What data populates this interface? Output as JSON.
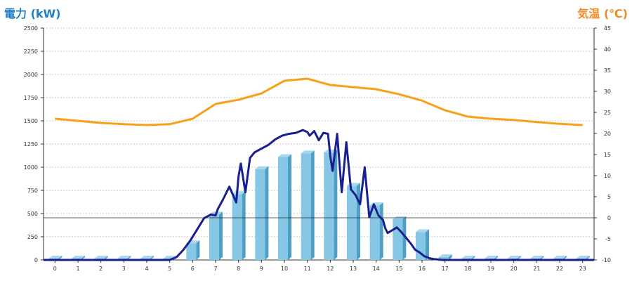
{
  "chart_data": {
    "type": "bar",
    "title_left": "電力 (kW)",
    "title_right": "気温 (℃)",
    "categories": [
      "0",
      "1",
      "2",
      "3",
      "4",
      "5",
      "6",
      "7",
      "8",
      "9",
      "10",
      "11",
      "12",
      "13",
      "14",
      "15",
      "16",
      "17",
      "18",
      "19",
      "20",
      "21",
      "22",
      "23"
    ],
    "y_left": {
      "min": 0,
      "max": 2500,
      "ticks": [
        0,
        250,
        500,
        750,
        1000,
        1250,
        1500,
        1750,
        2000,
        2250,
        2500
      ]
    },
    "y_right": {
      "min": -10,
      "max": 45,
      "ticks": [
        -10,
        -5,
        0,
        5,
        10,
        15,
        20,
        25,
        30,
        35,
        40,
        45
      ]
    },
    "grid": true,
    "bar_series": {
      "axis": "left",
      "values": [
        15,
        15,
        15,
        15,
        15,
        15,
        180,
        490,
        710,
        980,
        1110,
        1150,
        1160,
        800,
        590,
        440,
        300,
        30,
        15,
        15,
        15,
        15,
        15,
        15
      ]
    },
    "line_series_power": {
      "axis": "left",
      "x": [
        5.0,
        5.3,
        5.6,
        5.9,
        6.2,
        6.5,
        6.8,
        7.0,
        7.1,
        7.3,
        7.6,
        7.9,
        8.0,
        8.1,
        8.3,
        8.5,
        8.7,
        9.0,
        9.3,
        9.6,
        9.9,
        10.2,
        10.5,
        10.8,
        11.0,
        11.1,
        11.3,
        11.5,
        11.7,
        11.9,
        12.0,
        12.1,
        12.3,
        12.5,
        12.7,
        12.9,
        13.1,
        13.3,
        13.5,
        13.7,
        13.9,
        14.1,
        14.3,
        14.4,
        14.5,
        14.7,
        14.9,
        15.1,
        15.3,
        15.5,
        15.7,
        15.9,
        16.1,
        16.3,
        16.5,
        16.7,
        16.9,
        17.0
      ],
      "values": [
        0,
        30,
        110,
        210,
        330,
        450,
        490,
        480,
        550,
        640,
        790,
        620,
        900,
        1040,
        730,
        1100,
        1160,
        1200,
        1240,
        1300,
        1340,
        1360,
        1370,
        1400,
        1380,
        1340,
        1390,
        1290,
        1370,
        1360,
        1120,
        960,
        1360,
        730,
        1270,
        760,
        700,
        600,
        1000,
        460,
        600,
        480,
        430,
        340,
        290,
        320,
        350,
        300,
        240,
        180,
        110,
        80,
        40,
        20,
        10,
        5,
        0,
        0
      ]
    },
    "line_series_temperature": {
      "axis": "right",
      "values": [
        23.5,
        23.0,
        22.5,
        22.2,
        22.0,
        22.2,
        23.5,
        27.0,
        28.0,
        29.5,
        32.5,
        33.0,
        31.5,
        31.0,
        30.5,
        29.3,
        27.8,
        25.5,
        24.0,
        23.5,
        23.2,
        22.7,
        22.3,
        22.0
      ]
    },
    "reference_line": {
      "axis": "right",
      "value": 0
    },
    "colors": {
      "bar_front": "#86c7e6",
      "bar_side": "#4f9ec4",
      "bar_top": "#a9d8ee",
      "power_line": "#1a1f8f",
      "temp_line": "#f7a11a",
      "left_title": "#1f7fc1",
      "right_title": "#f08a24",
      "grid": "#bbbbbb"
    }
  }
}
